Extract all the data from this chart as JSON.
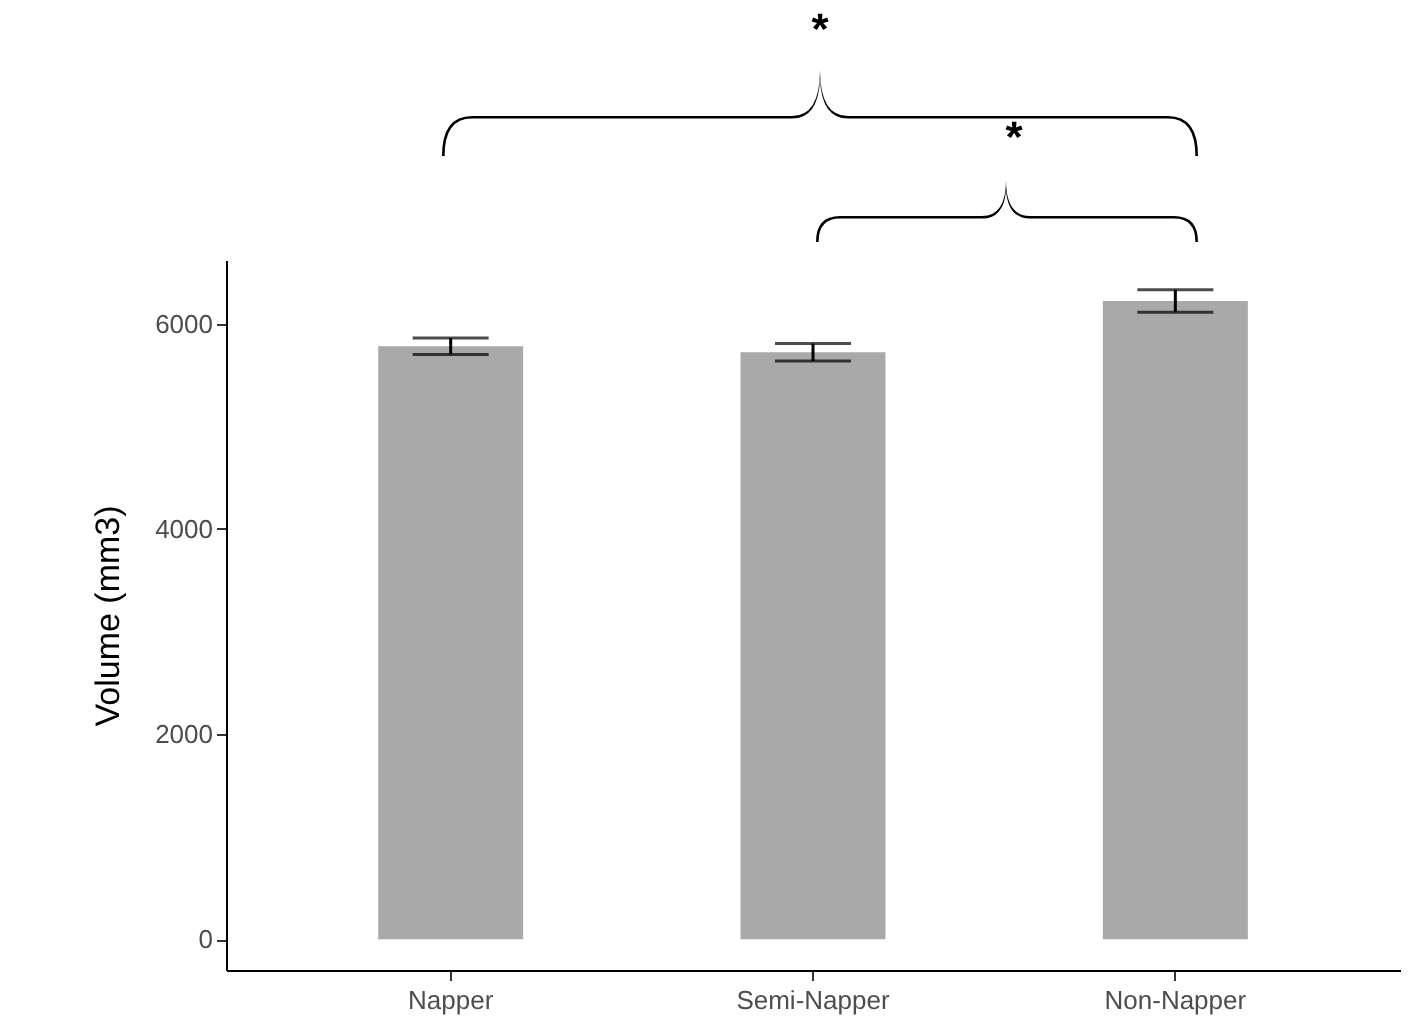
{
  "chart_data": {
    "type": "bar",
    "ylabel": "Volume (mm3)",
    "categories": [
      "Napper",
      "Semi-Napper",
      "Non-Napper"
    ],
    "values": [
      5780,
      5720,
      6220
    ],
    "errors": [
      80,
      85,
      110
    ],
    "color": "#a9a9a9",
    "ylim": [
      -300,
      6620
    ],
    "yticks": [
      0,
      2000,
      4000,
      6000
    ],
    "grid": false,
    "annotations": [
      "*",
      "*"
    ]
  }
}
